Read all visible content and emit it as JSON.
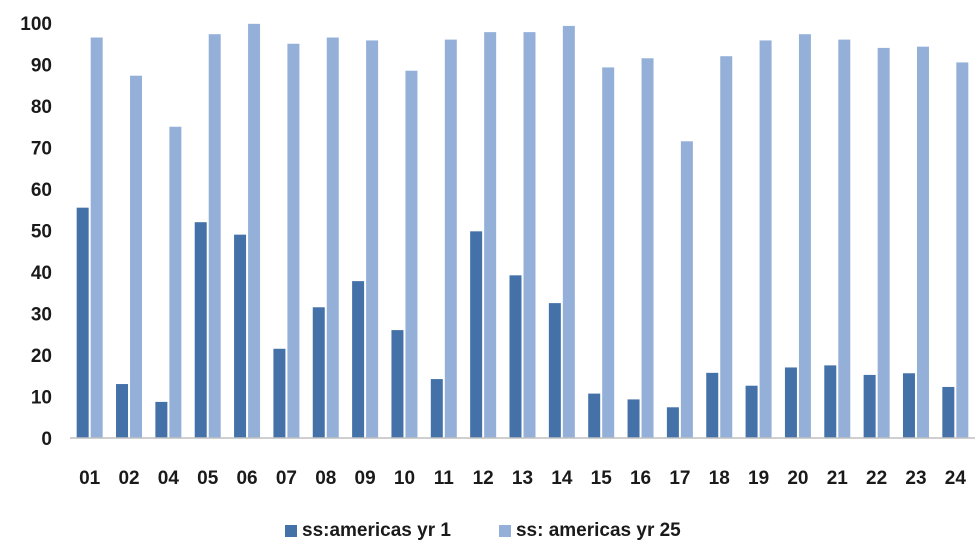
{
  "chart_data": {
    "type": "bar",
    "title": "",
    "xlabel": "",
    "ylabel": "",
    "ylim": [
      0,
      100
    ],
    "yticks": [
      0,
      10,
      20,
      30,
      40,
      50,
      60,
      70,
      80,
      90,
      100
    ],
    "grid": false,
    "legend_position": "bottom",
    "categories": [
      "01",
      "02",
      "04",
      "05",
      "06",
      "07",
      "08",
      "09",
      "10",
      "11",
      "12",
      "13",
      "14",
      "15",
      "16",
      "17",
      "18",
      "19",
      "20",
      "21",
      "22",
      "23",
      "24"
    ],
    "series": [
      {
        "name": "ss:americas yr 1",
        "color": "#4472a8",
        "values": [
          55.5,
          13,
          8.7,
          52,
          49,
          21.5,
          31.5,
          37.8,
          26,
          14.2,
          49.8,
          39.2,
          32.5,
          10.7,
          9.3,
          7.4,
          15.7,
          12.6,
          17,
          17.5,
          15.2,
          15.6,
          12.3
        ]
      },
      {
        "name": "ss: americas yr 25",
        "color": "#95b0d8",
        "values": [
          96.5,
          87.3,
          75,
          97.3,
          99.8,
          95,
          96.5,
          95.8,
          88.5,
          96,
          97.8,
          97.8,
          99.3,
          89.3,
          91.5,
          71.5,
          92,
          95.8,
          97.3,
          96,
          94,
          94.3,
          90.5
        ]
      }
    ]
  }
}
